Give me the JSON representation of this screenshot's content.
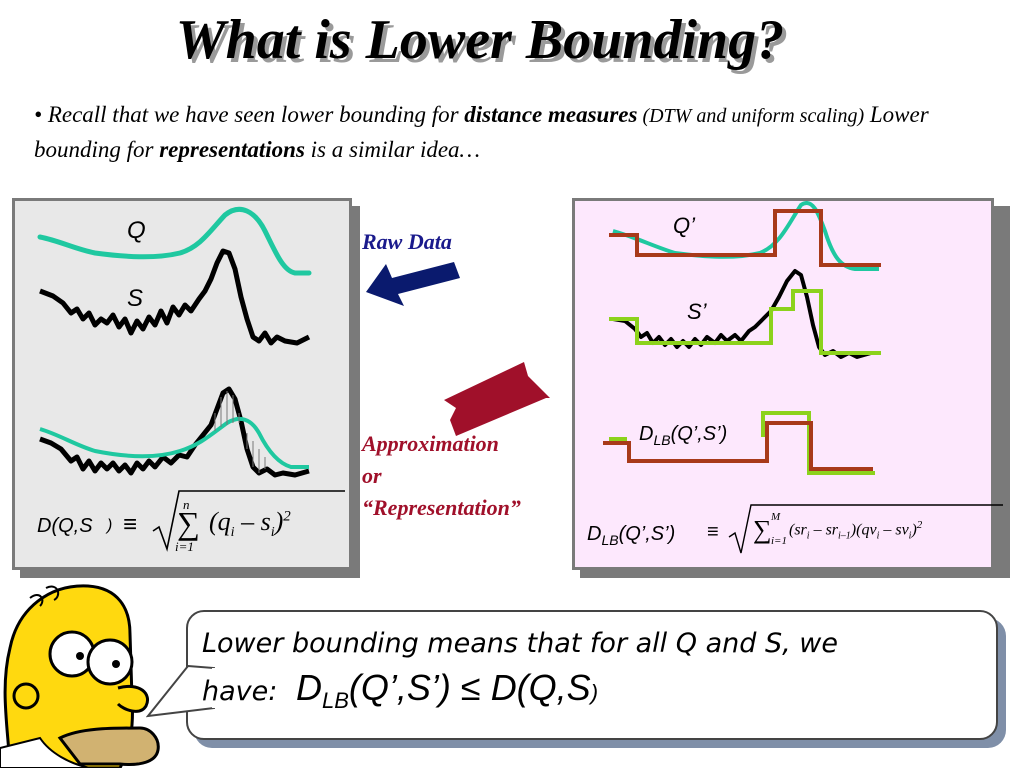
{
  "title": "What is Lower Bounding?",
  "bullet": {
    "marker": "•",
    "part1": "Recall that we have seen lower bounding for ",
    "bold1": "distance measures",
    "part2": " (DTW and uniform scaling)",
    "part3": " Lower bounding for ",
    "bold2": "representations",
    "part4": " is a similar idea…"
  },
  "left_panel": {
    "q_label": "Q",
    "s_label": "S",
    "formula_lhs": "D(Q,S",
    "formula_paren": ")",
    "equiv": "≡",
    "sum_top": "n",
    "sum_bottom": "i=1",
    "term": "(q",
    "term_i1": "i",
    "minus": " – s",
    "term_i2": "i",
    "close": ")",
    "power": "2"
  },
  "arrows": {
    "raw_label": "Raw Data",
    "approx_line1": "Approximation",
    "approx_line2": "or",
    "approx_line3": "“Representation”",
    "raw_color": "#0a1a6e",
    "approx_color": "#a0102a"
  },
  "right_panel": {
    "q_label": "Q’",
    "s_label": "S’",
    "dlb_d": "D",
    "dlb_sub": "LB",
    "dlb_args": "(Q’,S’)",
    "formula_d": "D",
    "formula_sub": "LB",
    "formula_args": "(Q’,S’)",
    "equiv": "≡",
    "sum_top": "M",
    "sum_bottom": "i=1",
    "term": "(sr",
    "t1": "i",
    "t2": " – sr",
    "t3": "i–1",
    "t4": ")(qv",
    "t5": "i",
    "t6": " – sv",
    "t7": "i",
    "t8": ")",
    "power": "2"
  },
  "callout": {
    "line1": "Lower bounding means that for all Q and S, we",
    "line2_prefix": "have:",
    "d": "D",
    "sub": "LB",
    "args": "(Q’,S’)",
    "leq": "≤",
    "rhs": "D(Q,S",
    "rhs_close": ")"
  },
  "colors": {
    "teal": "#1fc8a0",
    "black_series": "#000000",
    "brown": "#a83a1a",
    "lime": "#8cd21c",
    "left_bg": "#e8e8e8",
    "right_bg": "#fde8fd"
  }
}
